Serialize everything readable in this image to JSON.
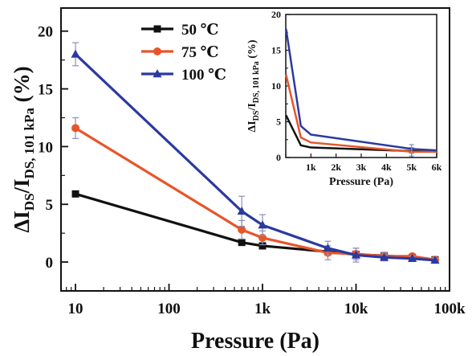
{
  "chart_data": [
    {
      "type": "line",
      "xscale": "log",
      "xlim": [
        7,
        100000
      ],
      "ylim": [
        -2.5,
        22
      ],
      "xticks": [
        10,
        100,
        1000,
        10000,
        100000
      ],
      "xtick_labels": [
        "10",
        "100",
        "1k",
        "10k",
        "100k"
      ],
      "yticks": [
        0,
        5,
        10,
        15,
        20
      ],
      "ytick_labels": [
        "0",
        "5",
        "10",
        "15",
        "20"
      ],
      "xlabel": "Pressure (Pa)",
      "ylabel_parts": [
        "ΔI",
        "DS",
        "/I",
        "DS, 101 kPa",
        " (%)"
      ],
      "legend_position": "top-center",
      "series": [
        {
          "name": "50 ℃",
          "color": "#111111",
          "marker": "square",
          "x": [
            10,
            600,
            1000,
            5000,
            10000,
            20000,
            40000,
            70000
          ],
          "y": [
            5.9,
            1.7,
            1.4,
            0.9,
            0.65,
            0.55,
            0.4,
            0.2
          ],
          "err": [
            0,
            0,
            0,
            0.3,
            0.3,
            0.2,
            0.2,
            0.15
          ]
        },
        {
          "name": "75 ℃",
          "color": "#e8552a",
          "marker": "circle",
          "x": [
            10,
            600,
            1000,
            5000,
            10000,
            20000,
            40000,
            70000
          ],
          "y": [
            11.6,
            2.8,
            2.1,
            0.8,
            0.7,
            0.5,
            0.5,
            0.2
          ],
          "err": [
            0.9,
            0.8,
            0.6,
            0.6,
            0.5,
            0.3,
            0.2,
            0.2
          ]
        },
        {
          "name": "100 ℃",
          "color": "#2b3aa0",
          "marker": "triangle",
          "x": [
            10,
            600,
            1000,
            5000,
            10000,
            20000,
            40000,
            70000
          ],
          "y": [
            18.0,
            4.4,
            3.2,
            1.2,
            0.6,
            0.4,
            0.3,
            0.15
          ],
          "err": [
            1.0,
            1.3,
            0.9,
            0.6,
            0.6,
            0.3,
            0.2,
            0.2
          ]
        }
      ]
    },
    {
      "type": "line",
      "role": "inset",
      "xscale": "linear",
      "xlim": [
        0,
        6000
      ],
      "ylim": [
        0,
        20
      ],
      "xticks": [
        0,
        1000,
        2000,
        3000,
        4000,
        5000,
        6000
      ],
      "xtick_labels": [
        "",
        "1k",
        "2k",
        "3k",
        "4k",
        "5k",
        "6k"
      ],
      "yticks": [
        0,
        5,
        10,
        15,
        20
      ],
      "ytick_labels": [
        "0",
        "5",
        "10",
        "15",
        "20"
      ],
      "xlabel": "Pressure (Pa)",
      "ylabel_parts": [
        "ΔI",
        "DS",
        "/I",
        "DS, 101 kPa",
        " (%)"
      ],
      "series": [
        {
          "name": "50 ℃",
          "color": "#111111",
          "x": [
            10,
            600,
            1000,
            5000,
            6000
          ],
          "y": [
            5.9,
            1.7,
            1.4,
            0.9,
            0.85
          ],
          "err": [
            0,
            0,
            0,
            0.3,
            0
          ]
        },
        {
          "name": "75 ℃",
          "color": "#e8552a",
          "x": [
            10,
            600,
            1000,
            5000,
            6000
          ],
          "y": [
            11.6,
            2.8,
            2.1,
            0.8,
            0.8
          ],
          "err": [
            0,
            0,
            0,
            0.6,
            0
          ]
        },
        {
          "name": "100 ℃",
          "color": "#2b3aa0",
          "x": [
            10,
            600,
            1000,
            5000,
            6000
          ],
          "y": [
            18.0,
            4.4,
            3.2,
            1.2,
            1.0
          ],
          "err": [
            0,
            0,
            0,
            0.6,
            0
          ]
        }
      ]
    }
  ]
}
